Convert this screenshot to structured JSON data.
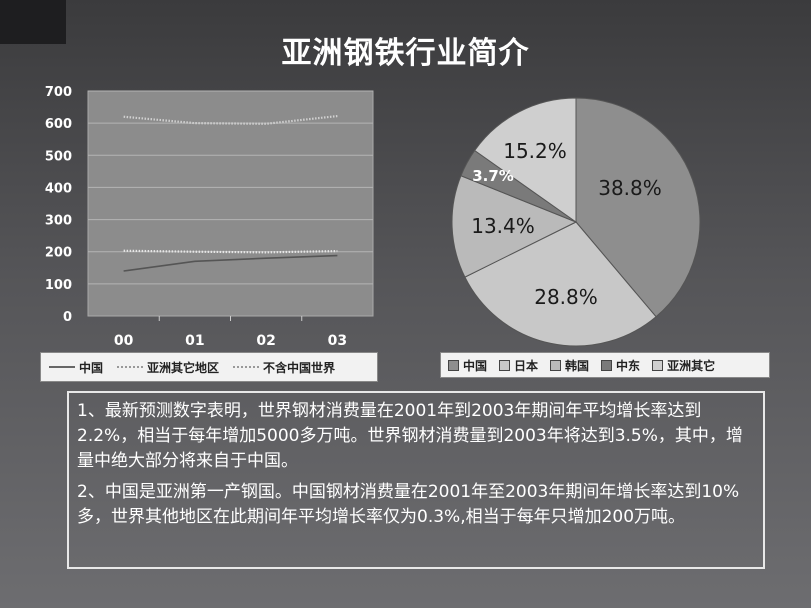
{
  "title": "亚洲钢铁行业简介",
  "colors": {
    "plot_bg": "#8c8c8c",
    "china_line": "#555555",
    "asia_other_line": "#e6e6e6",
    "world_ex_china_line": "#d0d0d0"
  },
  "chart_data": [
    {
      "type": "line",
      "categories": [
        "00",
        "01",
        "02",
        "03"
      ],
      "ylim": [
        0,
        700
      ],
      "yticks": [
        "0",
        "100",
        "200",
        "300",
        "400",
        "500",
        "600",
        "700"
      ],
      "grid": true,
      "legend_position": "bottom",
      "series": [
        {
          "name": "中国",
          "color": "#555555",
          "style": "solid",
          "values": [
            140,
            170,
            180,
            188
          ]
        },
        {
          "name": "亚洲其它地区",
          "color": "#e6e6e6",
          "style": "dotted",
          "values": [
            203,
            200,
            198,
            202
          ]
        },
        {
          "name": "不含中国世界",
          "color": "#d0d0d0",
          "style": "dotted",
          "values": [
            620,
            600,
            598,
            622
          ]
        }
      ]
    },
    {
      "type": "pie",
      "legend_position": "bottom",
      "slices": [
        {
          "name": "中国",
          "value": 38.8,
          "label": "38.8%",
          "color": "#8e8e8e"
        },
        {
          "name": "日本",
          "value": 28.8,
          "label": "28.8%",
          "color": "#c8c8c8"
        },
        {
          "name": "韩国",
          "value": 13.4,
          "label": "13.4%",
          "color": "#bababa"
        },
        {
          "name": "中东",
          "value": 3.7,
          "label": "3.7%",
          "color": "#7a7a7a"
        },
        {
          "name": "亚洲其它",
          "value": 15.2,
          "label": "15.2%",
          "color": "#cfcfcf"
        }
      ]
    }
  ],
  "text": {
    "p1": "1、最新预测数字表明，世界钢材消费量在2001年到2003年期间年平均增长率达到2.2%，相当于每年增加5000多万吨。世界钢材消费量到2003年将达到3.5%，其中，增量中绝大部分将来自于中国。",
    "p2": "2、中国是亚洲第一产钢国。中国钢材消费量在2001年至2003年期间年增长率达到10%多，世界其他地区在此期间年平均增长率仅为0.3%,相当于每年只增加200万吨。"
  }
}
